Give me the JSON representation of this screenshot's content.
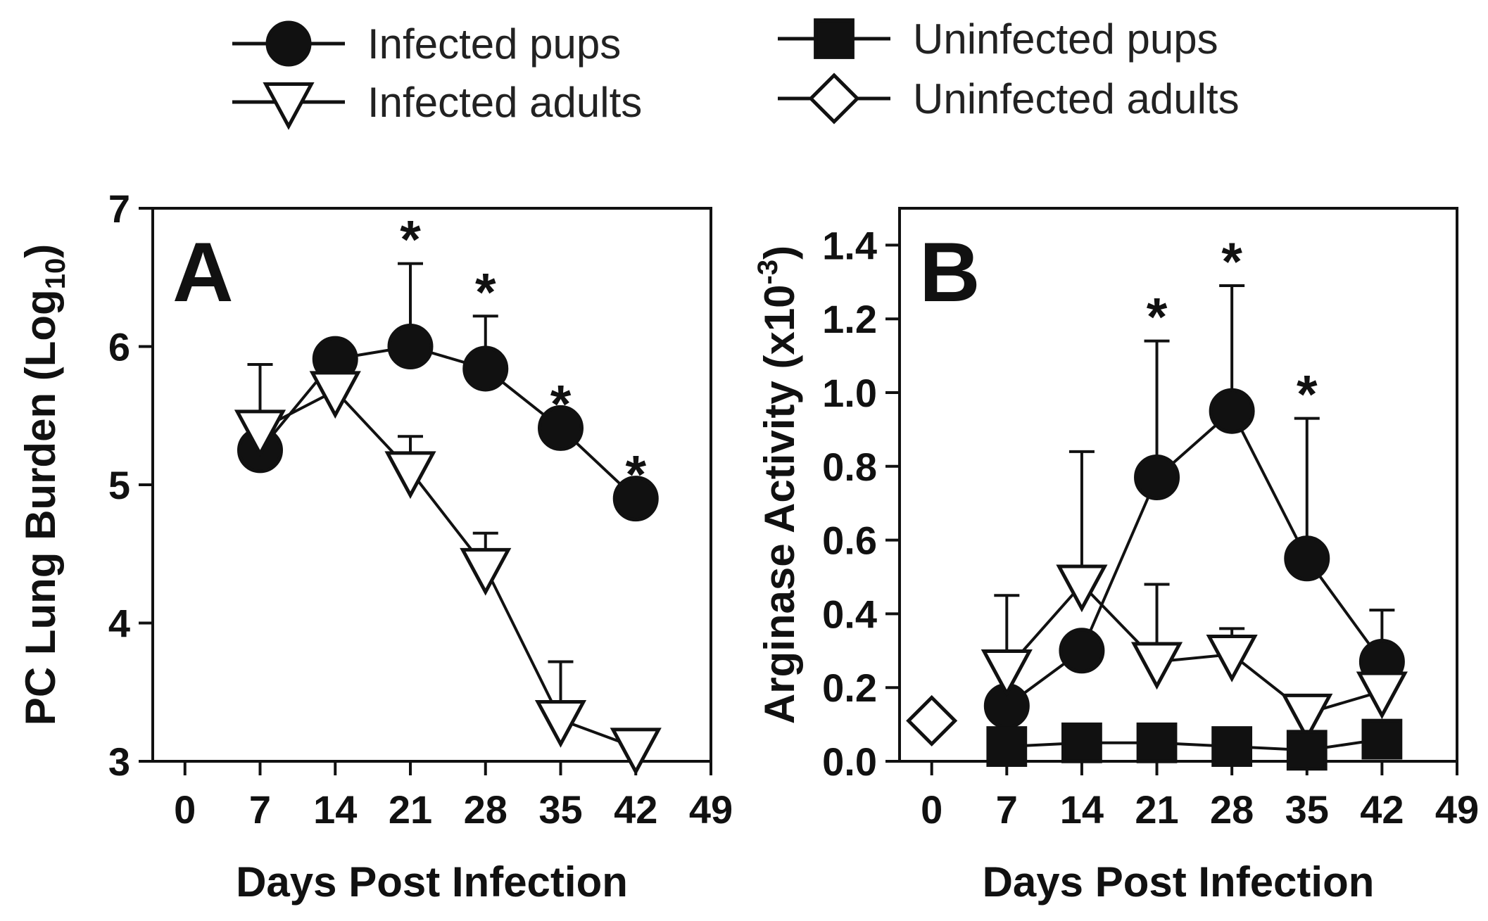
{
  "legend": [
    {
      "name": "Infected pups",
      "marker": "circle",
      "fill": "#111111"
    },
    {
      "name": "Infected adults",
      "marker": "triangle-down",
      "fill": "#ffffff"
    },
    {
      "name": "Uninfected pups",
      "marker": "square",
      "fill": "#111111"
    },
    {
      "name": "Uninfected adults",
      "marker": "diamond",
      "fill": "#ffffff"
    }
  ],
  "chart_data": [
    {
      "type": "line",
      "panel_label": "A",
      "xlabel": "Days Post Infection",
      "ylabel": "PC Lung Burden (Log",
      "ylabel_sub": "10",
      "ylabel_close": ")",
      "xlim": [
        -3,
        49
      ],
      "ylim": [
        3,
        7
      ],
      "xticks": [
        0,
        7,
        14,
        21,
        28,
        35,
        42,
        49
      ],
      "yticks": [
        3,
        4,
        5,
        6,
        7
      ],
      "series": [
        {
          "name": "Infected pups",
          "marker": "circle",
          "x": [
            7,
            14,
            21,
            28,
            35,
            42
          ],
          "y": [
            5.25,
            5.91,
            6.0,
            5.84,
            5.41,
            4.9
          ],
          "err": [
            null,
            null,
            0.6,
            0.38,
            null,
            null
          ]
        },
        {
          "name": "Infected adults",
          "marker": "triangle-down",
          "x": [
            7,
            14,
            21,
            28,
            35,
            42
          ],
          "y": [
            5.4,
            5.68,
            5.1,
            4.4,
            3.3,
            3.1
          ],
          "err": [
            0.47,
            null,
            0.25,
            0.25,
            0.42,
            null
          ]
        }
      ],
      "annotations": [
        {
          "text": "*",
          "x": 21,
          "y": 6.6
        },
        {
          "text": "*",
          "x": 28,
          "y": 6.22
        },
        {
          "text": "*",
          "x": 35,
          "y": 5.41
        },
        {
          "text": "*",
          "x": 42,
          "y": 4.9
        }
      ]
    },
    {
      "type": "line",
      "panel_label": "B",
      "xlabel": "Days Post Infection",
      "ylabel": "Arginase Activity (x10",
      "ylabel_sup": "-3",
      "ylabel_close": ")",
      "xlim": [
        -3,
        49
      ],
      "ylim": [
        0,
        1.5
      ],
      "xticks": [
        0,
        7,
        14,
        21,
        28,
        35,
        42,
        49
      ],
      "yticks": [
        0.0,
        0.2,
        0.4,
        0.6,
        0.8,
        1.0,
        1.2,
        1.4
      ],
      "ytick_labels": [
        "0.0",
        "0.2",
        "0.4",
        "0.6",
        "0.8",
        "1.0",
        "1.2",
        "1.4"
      ],
      "series": [
        {
          "name": "Infected pups",
          "marker": "circle",
          "x": [
            7,
            14,
            21,
            28,
            35,
            42
          ],
          "y": [
            0.15,
            0.3,
            0.77,
            0.95,
            0.55,
            0.27
          ],
          "err": [
            null,
            null,
            0.37,
            0.34,
            0.38,
            0.14
          ]
        },
        {
          "name": "Infected adults",
          "marker": "triangle-down",
          "x": [
            7,
            14,
            21,
            28,
            35,
            42
          ],
          "y": [
            0.25,
            0.48,
            0.27,
            0.29,
            0.13,
            0.19
          ],
          "err": [
            0.2,
            0.36,
            0.21,
            0.07,
            null,
            null
          ]
        },
        {
          "name": "Uninfected pups",
          "marker": "square",
          "x": [
            7,
            14,
            21,
            28,
            35,
            42
          ],
          "y": [
            0.04,
            0.05,
            0.05,
            0.04,
            0.03,
            0.06
          ],
          "err": [
            null,
            null,
            null,
            null,
            null,
            null
          ]
        },
        {
          "name": "Uninfected adults",
          "marker": "diamond",
          "x": [
            0
          ],
          "y": [
            0.11
          ],
          "err": [
            null
          ]
        }
      ],
      "annotations": [
        {
          "text": "*",
          "x": 21,
          "y": 1.14
        },
        {
          "text": "*",
          "x": 28,
          "y": 1.29
        },
        {
          "text": "*",
          "x": 35,
          "y": 0.93
        }
      ]
    }
  ]
}
